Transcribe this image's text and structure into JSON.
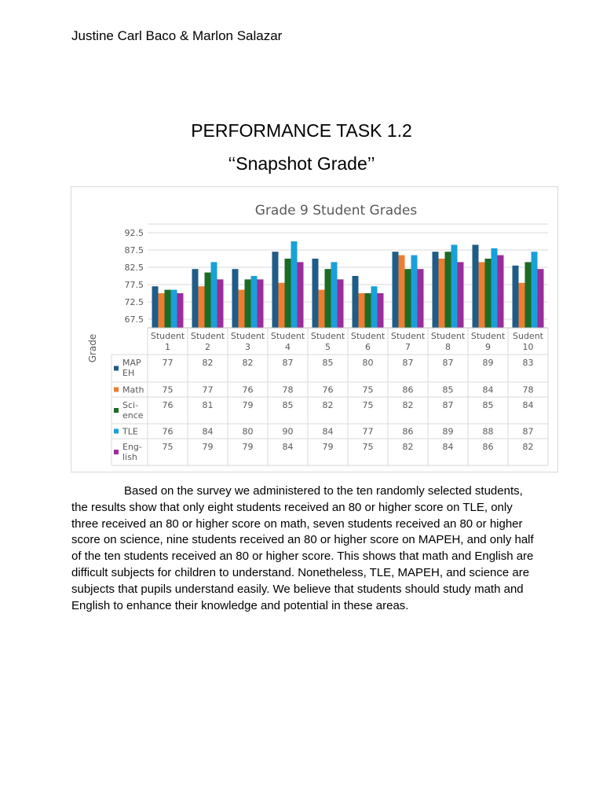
{
  "document": {
    "author": "Justine Carl Baco & Marlon Salazar",
    "title": "PERFORMANCE TASK 1.2",
    "subtitle": "‘‘Snapshot Grade’’",
    "paragraph": "Based on the survey we administered to the ten randomly selected students, the results show that only eight students received an 80 or higher score on TLE, only three received an 80 or higher score on math, seven students received an 80 or higher score on science, nine students received an 80 or higher score on MAPEH, and only half of the ten students received an 80 or higher score. This shows that math and English are difficult subjects for children to understand. Nonetheless, TLE, MAPEH, and science are subjects that pupils understand easily. We believe that students should study math and English to enhance their knowledge and potential in these areas."
  },
  "chart_data": {
    "type": "bar",
    "title": "Grade 9 Student Grades",
    "xlabel": "",
    "ylabel": "Grade",
    "ylim": [
      65,
      95
    ],
    "yticks": [
      "67.5",
      "72.5",
      "77.5",
      "82.5",
      "87.5",
      "92.5"
    ],
    "grid": true,
    "legend": "data-table-left",
    "categories": [
      [
        "Student",
        "1"
      ],
      [
        "Student",
        "2"
      ],
      [
        "Student",
        "3"
      ],
      [
        "Student",
        "4"
      ],
      [
        "Student",
        "5"
      ],
      [
        "Student",
        "6"
      ],
      [
        "Student",
        "7"
      ],
      [
        "Student",
        "8"
      ],
      [
        "Student",
        "9"
      ],
      [
        "Sudent",
        "10"
      ]
    ],
    "series": [
      {
        "name": "MAPEH",
        "label_lines": [
          "MAP",
          "EH"
        ],
        "color": "#1f5c87",
        "values": [
          77,
          82,
          82,
          87,
          85,
          80,
          87,
          87,
          89,
          83
        ]
      },
      {
        "name": "Math",
        "label_lines": [
          "Math"
        ],
        "color": "#ed7d31",
        "values": [
          75,
          77,
          76,
          78,
          76,
          75,
          86,
          85,
          84,
          78
        ]
      },
      {
        "name": "Science",
        "label_lines": [
          "Sci-",
          "ence"
        ],
        "color": "#1e6b24",
        "values": [
          76,
          81,
          79,
          85,
          82,
          75,
          82,
          87,
          85,
          84
        ]
      },
      {
        "name": "TLE",
        "label_lines": [
          "TLE"
        ],
        "color": "#1aa0d8",
        "values": [
          76,
          84,
          80,
          90,
          84,
          77,
          86,
          89,
          88,
          87
        ]
      },
      {
        "name": "English",
        "label_lines": [
          "Eng-",
          "lish"
        ],
        "color": "#9b2d9b",
        "values": [
          75,
          79,
          79,
          84,
          79,
          75,
          82,
          84,
          86,
          82
        ]
      }
    ]
  }
}
